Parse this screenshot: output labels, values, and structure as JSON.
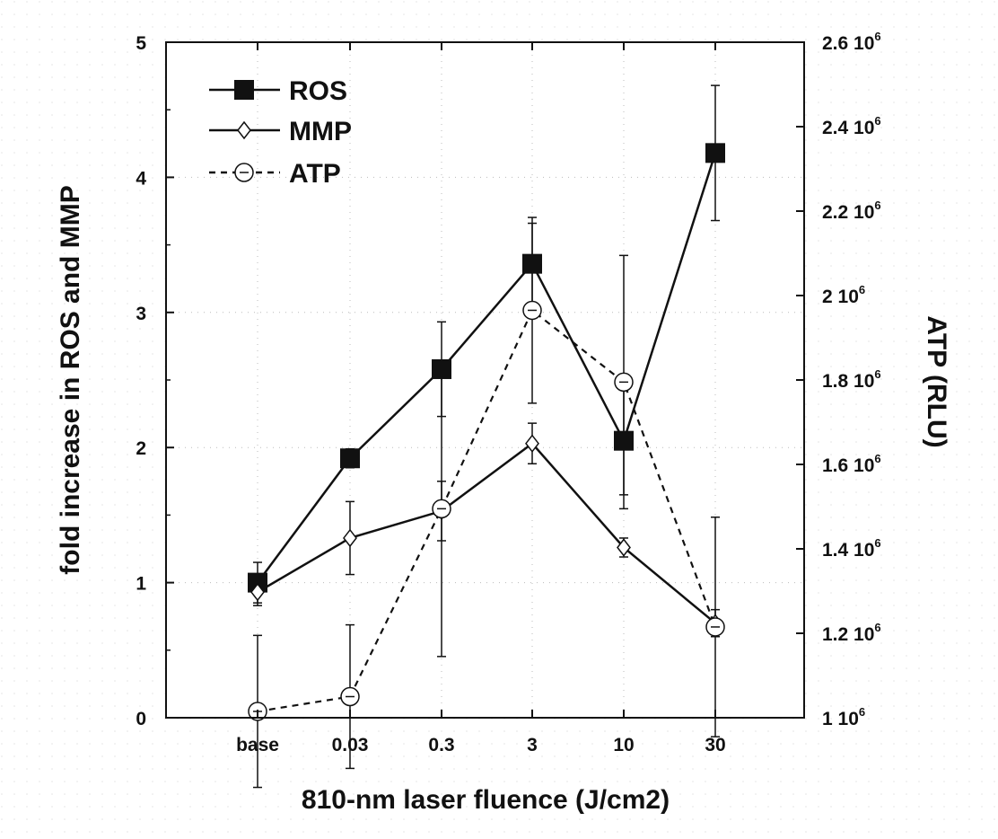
{
  "chart_data": {
    "type": "line",
    "xlabel": "810-nm laser fluence (J/cm2)",
    "ylabel_left": "fold increase in ROS and MMP",
    "ylabel_right": "ATP (RLU)",
    "categories": [
      "base",
      "0.03",
      "0.3",
      "3",
      "10",
      "30"
    ],
    "ylim_left": [
      0,
      5
    ],
    "yticks_left": [
      "0",
      "1",
      "2",
      "3",
      "4",
      "5"
    ],
    "ylim_right": [
      1000000,
      2600000
    ],
    "yticks_right": [
      {
        "base": "1 10",
        "exp": "6",
        "value": 1000000
      },
      {
        "base": "1.2 10",
        "exp": "6",
        "value": 1200000
      },
      {
        "base": "1.4 10",
        "exp": "6",
        "value": 1400000
      },
      {
        "base": "1.6 10",
        "exp": "6",
        "value": 1600000
      },
      {
        "base": "1.8 10",
        "exp": "6",
        "value": 1800000
      },
      {
        "base": "2 10",
        "exp": "6",
        "value": 2000000
      },
      {
        "base": "2.2 10",
        "exp": "6",
        "value": 2200000
      },
      {
        "base": "2.4 10",
        "exp": "6",
        "value": 2400000
      },
      {
        "base": "2.6 10",
        "exp": "6",
        "value": 2600000
      }
    ],
    "grid": true,
    "legend_position": "top-left",
    "series": [
      {
        "name": "ROS",
        "axis": "left",
        "marker": "filled-square",
        "line": "solid",
        "values": [
          1.0,
          1.92,
          2.58,
          3.36,
          2.05,
          4.18
        ],
        "error": [
          0.15,
          0.07,
          0.35,
          0.3,
          0.4,
          0.5
        ]
      },
      {
        "name": "MMP",
        "axis": "left",
        "marker": "open-diamond",
        "line": "solid",
        "values": [
          0.93,
          1.33,
          1.53,
          2.03,
          1.26,
          0.7
        ],
        "error": [
          0.1,
          0.27,
          0.22,
          0.15,
          0.07,
          0.1
        ]
      },
      {
        "name": "ATP",
        "axis": "right",
        "marker": "open-circle",
        "line": "dashed",
        "values": [
          1015000,
          1050000,
          1495000,
          1965000,
          1795000,
          1215000
        ],
        "error": [
          180000,
          170000,
          350000,
          220000,
          300000,
          260000
        ]
      }
    ]
  }
}
